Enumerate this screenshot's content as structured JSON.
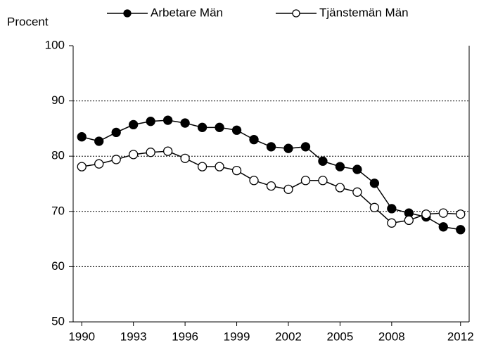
{
  "chart_data": {
    "type": "line",
    "y_label": "Procent",
    "x": [
      1990,
      1991,
      1992,
      1993,
      1994,
      1995,
      1996,
      1997,
      1998,
      1999,
      2000,
      2001,
      2002,
      2003,
      2004,
      2005,
      2006,
      2007,
      2008,
      2009,
      2010,
      2011,
      2012
    ],
    "series": [
      {
        "name": "Arbetare Män",
        "color": "#000000",
        "marker": "filled",
        "values": [
          83.5,
          82.7,
          84.3,
          85.7,
          86.3,
          86.5,
          86.0,
          85.2,
          85.2,
          84.7,
          83.0,
          81.7,
          81.4,
          81.7,
          79.1,
          78.1,
          77.6,
          75.1,
          70.5,
          69.7,
          69.0,
          67.2,
          66.7
        ]
      },
      {
        "name": "Tjänstemän Män",
        "color": "#000000",
        "marker": "open",
        "values": [
          78.1,
          78.6,
          79.4,
          80.3,
          80.7,
          80.9,
          79.6,
          78.1,
          78.1,
          77.4,
          75.6,
          74.6,
          74.0,
          75.6,
          75.6,
          74.3,
          73.5,
          70.7,
          67.9,
          68.4,
          69.5,
          69.7,
          69.5
        ]
      }
    ],
    "xlim": [
      1989.5,
      2012.5
    ],
    "xticks": [
      1990,
      1993,
      1996,
      1999,
      2002,
      2005,
      2008,
      2012
    ],
    "ylim": [
      50,
      100
    ],
    "yticks": [
      50,
      60,
      70,
      80,
      90,
      100
    ],
    "grid": true
  }
}
